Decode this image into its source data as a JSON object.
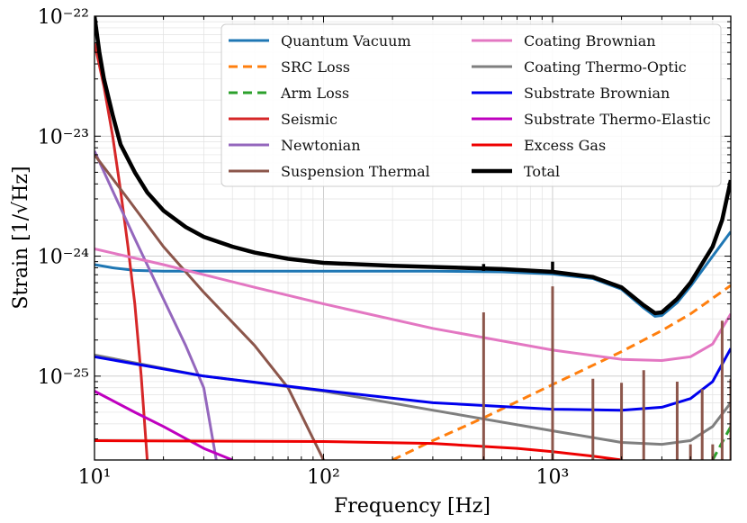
{
  "chart_data": {
    "type": "line",
    "title": "",
    "xlabel": "Frequency [Hz]",
    "ylabel": "Strain [1/√Hz]",
    "xscale": "log",
    "yscale": "log",
    "xlim": [
      10,
      6000
    ],
    "ylim": [
      2e-26,
      1e-22
    ],
    "grid": true,
    "legend_position": "top-right",
    "x_tick_labels": [
      "10¹",
      "10²",
      "10³"
    ],
    "y_tick_labels": [
      "10⁻²⁵",
      "10⁻²⁴",
      "10⁻²³",
      "10⁻²²"
    ],
    "series": [
      {
        "name": "Quantum Vacuum",
        "color": "#1f77b4",
        "dash": "solid",
        "width": 3,
        "points": [
          [
            10,
            8.5e-25
          ],
          [
            12,
            8e-25
          ],
          [
            15,
            7.6e-25
          ],
          [
            20,
            7.5e-25
          ],
          [
            50,
            7.5e-25
          ],
          [
            100,
            7.5e-25
          ],
          [
            300,
            7.5e-25
          ],
          [
            600,
            7.4e-25
          ],
          [
            1000,
            7.1e-25
          ],
          [
            1500,
            6.5e-25
          ],
          [
            2000,
            5.3e-25
          ],
          [
            2500,
            3.7e-25
          ],
          [
            2800,
            3.15e-25
          ],
          [
            3000,
            3.2e-25
          ],
          [
            3500,
            4.1e-25
          ],
          [
            4000,
            5.6e-25
          ],
          [
            5000,
            1e-24
          ],
          [
            6000,
            1.6e-24
          ]
        ]
      },
      {
        "name": "SRC Loss",
        "color": "#ff7f0e",
        "dash": "dashed",
        "width": 3,
        "points": [
          [
            200,
            2e-26
          ],
          [
            300,
            2.9e-26
          ],
          [
            500,
            4.5e-26
          ],
          [
            1000,
            8.5e-26
          ],
          [
            2000,
            1.6e-25
          ],
          [
            3000,
            2.4e-25
          ],
          [
            4000,
            3.3e-25
          ],
          [
            6000,
            5.7e-25
          ]
        ]
      },
      {
        "name": "Arm Loss",
        "color": "#2ca02c",
        "dash": "dashed",
        "width": 3,
        "points": [
          [
            5000,
            2e-26
          ],
          [
            5500,
            2.8e-26
          ],
          [
            6000,
            3.8e-26
          ]
        ]
      },
      {
        "name": "Seismic",
        "color": "#d62728",
        "dash": "solid",
        "width": 3,
        "points": [
          [
            10,
            6e-23
          ],
          [
            11,
            2.6e-23
          ],
          [
            12,
            1e-23
          ],
          [
            13,
            3.5e-24
          ],
          [
            14,
            1.2e-24
          ],
          [
            15,
            4e-25
          ],
          [
            16,
            1e-25
          ],
          [
            17,
            2e-26
          ]
        ]
      },
      {
        "name": "Newtonian",
        "color": "#9467bd",
        "dash": "solid",
        "width": 3,
        "points": [
          [
            10,
            7.5e-24
          ],
          [
            12,
            3.5e-24
          ],
          [
            15,
            1.4e-24
          ],
          [
            20,
            4.4e-25
          ],
          [
            25,
            1.8e-25
          ],
          [
            30,
            8e-26
          ],
          [
            34,
            2e-26
          ]
        ]
      },
      {
        "name": "Suspension Thermal",
        "color": "#8c564b",
        "dash": "solid",
        "width": 3,
        "points": [
          [
            10,
            7e-24
          ],
          [
            14,
            3e-24
          ],
          [
            20,
            1.2e-24
          ],
          [
            30,
            5e-25
          ],
          [
            50,
            1.8e-25
          ],
          [
            70,
            8e-26
          ],
          [
            100,
            2e-26
          ]
        ]
      },
      {
        "name": "Coating Brownian",
        "color": "#e377c2",
        "dash": "solid",
        "width": 3,
        "points": [
          [
            10,
            1.15e-24
          ],
          [
            20,
            8.5e-25
          ],
          [
            50,
            5.5e-25
          ],
          [
            100,
            4e-25
          ],
          [
            300,
            2.5e-25
          ],
          [
            1000,
            1.65e-25
          ],
          [
            2000,
            1.38e-25
          ],
          [
            3000,
            1.35e-25
          ],
          [
            4000,
            1.45e-25
          ],
          [
            5000,
            1.85e-25
          ],
          [
            6000,
            3.3e-25
          ]
        ]
      },
      {
        "name": "Coating Thermo-Optic",
        "color": "#7f7f7f",
        "dash": "solid",
        "width": 3,
        "points": [
          [
            10,
            1.5e-25
          ],
          [
            30,
            1e-25
          ],
          [
            100,
            7.5e-26
          ],
          [
            300,
            5.2e-26
          ],
          [
            1000,
            3.5e-26
          ],
          [
            2000,
            2.8e-26
          ],
          [
            3000,
            2.7e-26
          ],
          [
            4000,
            2.9e-26
          ],
          [
            5000,
            3.8e-26
          ],
          [
            6000,
            6e-26
          ]
        ]
      },
      {
        "name": "Substrate Brownian",
        "color": "#0000ee",
        "dash": "solid",
        "width": 3,
        "points": [
          [
            10,
            1.45e-25
          ],
          [
            30,
            1e-25
          ],
          [
            100,
            7.6e-26
          ],
          [
            300,
            6e-26
          ],
          [
            1000,
            5.3e-26
          ],
          [
            2000,
            5.2e-26
          ],
          [
            3000,
            5.5e-26
          ],
          [
            4000,
            6.5e-26
          ],
          [
            5000,
            9e-26
          ],
          [
            6000,
            1.7e-25
          ]
        ]
      },
      {
        "name": "Substrate Thermo-Elastic",
        "color": "#bf00bf",
        "dash": "solid",
        "width": 3,
        "points": [
          [
            10,
            7.5e-26
          ],
          [
            15,
            5e-26
          ],
          [
            20,
            3.8e-26
          ],
          [
            30,
            2.5e-26
          ],
          [
            40,
            2e-26
          ]
        ]
      },
      {
        "name": "Excess Gas",
        "color": "#ee0000",
        "dash": "solid",
        "width": 3,
        "points": [
          [
            10,
            2.9e-26
          ],
          [
            100,
            2.85e-26
          ],
          [
            300,
            2.75e-26
          ],
          [
            700,
            2.5e-26
          ],
          [
            1000,
            2.35e-26
          ],
          [
            1500,
            2.15e-26
          ],
          [
            2000,
            2e-26
          ]
        ]
      },
      {
        "name": "Total",
        "color": "#000000",
        "dash": "solid",
        "width": 4.5,
        "points": [
          [
            10,
            1e-22
          ],
          [
            10.5,
            5e-23
          ],
          [
            11,
            3e-23
          ],
          [
            12,
            1.5e-23
          ],
          [
            13,
            8.5e-24
          ],
          [
            15,
            5e-24
          ],
          [
            17,
            3.4e-24
          ],
          [
            20,
            2.4e-24
          ],
          [
            25,
            1.75e-24
          ],
          [
            30,
            1.45e-24
          ],
          [
            40,
            1.2e-24
          ],
          [
            50,
            1.07e-24
          ],
          [
            70,
            9.5e-25
          ],
          [
            100,
            8.8e-25
          ],
          [
            200,
            8.3e-25
          ],
          [
            400,
            8e-25
          ],
          [
            600,
            7.8e-25
          ],
          [
            1000,
            7.4e-25
          ],
          [
            1500,
            6.7e-25
          ],
          [
            2000,
            5.5e-25
          ],
          [
            2500,
            3.9e-25
          ],
          [
            2800,
            3.35e-25
          ],
          [
            3000,
            3.4e-25
          ],
          [
            3500,
            4.4e-25
          ],
          [
            4000,
            6e-25
          ],
          [
            5000,
            1.2e-24
          ],
          [
            5500,
            2e-24
          ],
          [
            6000,
            4.3e-24
          ]
        ]
      }
    ],
    "spikes": [
      {
        "series": "Suspension Thermal",
        "color": "#8c564b",
        "x": 500,
        "top": 3.4e-25
      },
      {
        "series": "Suspension Thermal",
        "color": "#8c564b",
        "x": 1000,
        "top": 5.6e-25
      },
      {
        "series": "Suspension Thermal",
        "color": "#8c564b",
        "x": 1500,
        "top": 9.5e-26
      },
      {
        "series": "Suspension Thermal",
        "color": "#8c564b",
        "x": 2000,
        "top": 8.8e-26
      },
      {
        "series": "Suspension Thermal",
        "color": "#8c564b",
        "x": 2500,
        "top": 1.12e-25
      },
      {
        "series": "Suspension Thermal",
        "color": "#8c564b",
        "x": 3500,
        "top": 9e-26
      },
      {
        "series": "Suspension Thermal",
        "color": "#8c564b",
        "x": 4000,
        "top": 2.7e-26
      },
      {
        "series": "Suspension Thermal",
        "color": "#8c564b",
        "x": 4500,
        "top": 7.8e-26
      },
      {
        "series": "Suspension Thermal",
        "color": "#8c564b",
        "x": 5000,
        "top": 2.7e-26
      },
      {
        "series": "Suspension Thermal",
        "color": "#8c564b",
        "x": 5500,
        "top": 2.9e-25
      },
      {
        "series": "Suspension Thermal",
        "color": "#8c564b",
        "x": 6000,
        "top": 9.5e-26
      },
      {
        "series": "Total",
        "color": "#000000",
        "x": 500,
        "top": 8.6e-25
      },
      {
        "series": "Total",
        "color": "#000000",
        "x": 1000,
        "top": 9e-25
      }
    ]
  }
}
